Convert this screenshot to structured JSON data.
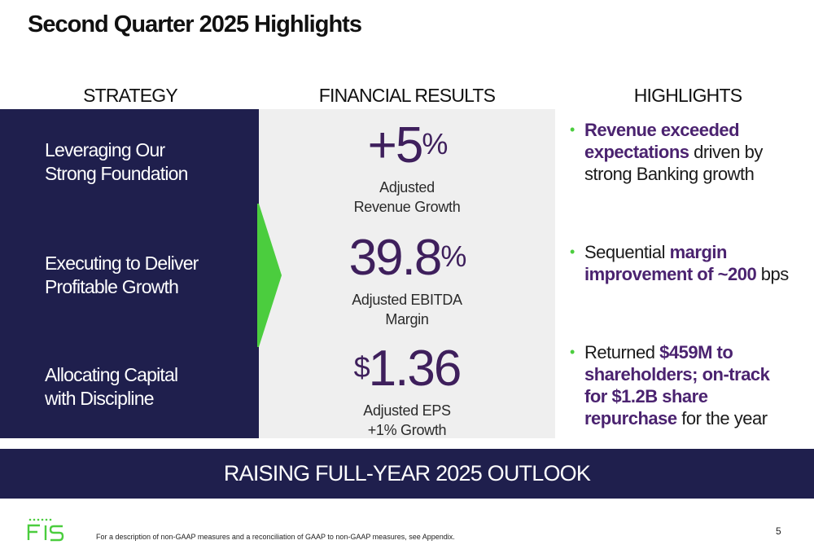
{
  "title": "Second Quarter 2025 Highlights",
  "columns": {
    "strategy": "STRATEGY",
    "financial": "FINANCIAL RESULTS",
    "highlights": "HIGHLIGHTS"
  },
  "strategy": [
    {
      "line1": "Leveraging Our",
      "line2": "Strong Foundation"
    },
    {
      "line1": "Executing to Deliver",
      "line2": "Profitable Growth"
    },
    {
      "line1": "Allocating Capital",
      "line2": "with Discipline"
    }
  ],
  "metrics": [
    {
      "prefix": "",
      "value": "+5",
      "suffix": "%",
      "label1": "Adjusted",
      "label2": "Revenue Growth"
    },
    {
      "prefix": "",
      "value": "39.8",
      "suffix": "%",
      "label1": "Adjusted EBITDA",
      "label2": "Margin"
    },
    {
      "prefix": "$",
      "value": "1.36",
      "suffix": "",
      "label1": "Adjusted EPS",
      "label2": "+1% Growth"
    }
  ],
  "highlights": [
    {
      "bold1": "Revenue exceeded expectations",
      "text1": " driven by strong Banking growth"
    },
    {
      "text0": "Sequential ",
      "bold1": "margin improvement of ~200",
      "text1": " bps"
    },
    {
      "text0": "Returned ",
      "bold1": "$459M to shareholders; on-track for $1.2B share repurchase",
      "text1": " for the year"
    }
  ],
  "bullet_glyph": "•",
  "banner": "RAISING FULL-YEAR 2025 OUTLOOK",
  "footer": {
    "logo_text": "FIS",
    "footnote": "For a description of non-GAAP measures and a reconciliation of GAAP to non-GAAP measures, see Appendix.",
    "page_number": "5"
  },
  "colors": {
    "navy": "#1f1f4d",
    "purple": "#3e1f5c",
    "green": "#4bcd3e",
    "panel_gray": "#efefef"
  }
}
